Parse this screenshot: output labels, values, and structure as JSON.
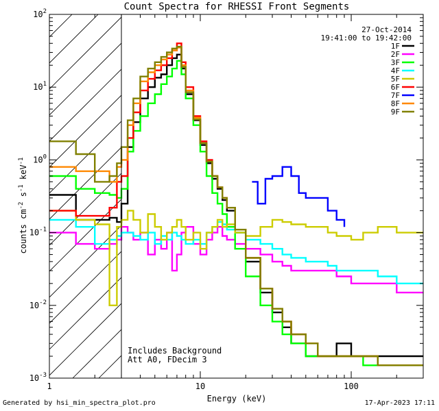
{
  "chart_data": {
    "type": "line",
    "title": "Count Spectra for RHESSI Front Segments",
    "xlabel": "Energy (keV)",
    "ylabel": "counts cm^-2 s^-1 keV^-1",
    "xscale": "log",
    "yscale": "log",
    "xlim": [
      1,
      300
    ],
    "ylim": [
      0.001,
      100
    ],
    "x_tick_labels": [
      "1",
      "10",
      "100"
    ],
    "y_tick_labels": [
      {
        "base": "10",
        "exp": "-3"
      },
      {
        "base": "10",
        "exp": "-2"
      },
      {
        "base": "10",
        "exp": "-1"
      },
      {
        "base": "10",
        "exp": "0"
      },
      {
        "base": "10",
        "exp": "1"
      },
      {
        "base": "10",
        "exp": "2"
      }
    ],
    "date": "27-Oct-2014",
    "time_range": "19:41:00 to 19:42:00",
    "annotations": [
      "Includes Background",
      "Att A0, FDecim 3"
    ],
    "shaded_region_keV": [
      1,
      3
    ],
    "series": [
      {
        "name": "1F",
        "color": "#000000",
        "x": [
          1.0,
          1.5,
          2.0,
          2.5,
          2.8,
          3.0,
          3.3,
          3.6,
          4.0,
          4.5,
          5.0,
          5.5,
          6.0,
          6.5,
          7.0,
          7.5,
          8.0,
          9.0,
          10.0,
          11.0,
          12.0,
          13.0,
          14.0,
          15.0,
          17.0,
          20.0,
          25.0,
          30.0,
          35.0,
          40.0,
          50.0,
          60.0,
          70.0,
          80.0,
          100.0,
          120.0,
          150.0,
          200.0,
          300.0
        ],
        "values": [
          0.33,
          0.15,
          0.15,
          0.16,
          0.14,
          0.25,
          1.5,
          3.3,
          7.0,
          10.0,
          13.5,
          15.0,
          20.0,
          25.0,
          28.0,
          18.0,
          8.0,
          3.5,
          1.6,
          0.9,
          0.55,
          0.4,
          0.28,
          0.2,
          0.1,
          0.04,
          0.015,
          0.008,
          0.005,
          0.003,
          0.002,
          0.002,
          0.002,
          0.003,
          0.002,
          0.002,
          0.002,
          0.002,
          0.002
        ]
      },
      {
        "name": "2F",
        "color": "#ff00ff",
        "x": [
          1.0,
          1.5,
          2.0,
          2.5,
          2.8,
          3.0,
          3.3,
          3.6,
          4.0,
          4.5,
          5.0,
          5.5,
          6.0,
          6.5,
          7.0,
          7.5,
          8.0,
          9.0,
          10.0,
          11.0,
          12.0,
          13.0,
          14.0,
          15.0,
          17.0,
          20.0,
          25.0,
          30.0,
          35.0,
          40.0,
          50.0,
          60.0,
          70.0,
          80.0,
          100.0,
          120.0,
          150.0,
          200.0,
          300.0
        ],
        "values": [
          0.1,
          0.07,
          0.06,
          0.07,
          0.08,
          0.12,
          0.1,
          0.08,
          0.1,
          0.05,
          0.08,
          0.06,
          0.1,
          0.03,
          0.05,
          0.1,
          0.12,
          0.07,
          0.05,
          0.08,
          0.1,
          0.12,
          0.09,
          0.08,
          0.07,
          0.06,
          0.05,
          0.04,
          0.035,
          0.03,
          0.03,
          0.03,
          0.03,
          0.025,
          0.02,
          0.02,
          0.02,
          0.015,
          0.015
        ]
      },
      {
        "name": "3F",
        "color": "#00ff00",
        "x": [
          1.0,
          1.5,
          2.0,
          2.5,
          2.8,
          3.0,
          3.3,
          3.6,
          4.0,
          4.5,
          5.0,
          5.5,
          6.0,
          6.5,
          7.0,
          7.5,
          8.0,
          9.0,
          10.0,
          11.0,
          12.0,
          13.0,
          14.0,
          15.0,
          17.0,
          20.0,
          25.0,
          30.0,
          35.0,
          40.0,
          50.0,
          60.0,
          70.0,
          80.0,
          100.0,
          120.0,
          150.0,
          200.0,
          300.0
        ],
        "values": [
          0.6,
          0.4,
          0.35,
          0.33,
          0.3,
          0.4,
          1.3,
          2.5,
          4.0,
          6.0,
          8.0,
          11.0,
          14.0,
          18.0,
          23.0,
          15.0,
          7.0,
          3.0,
          1.3,
          0.6,
          0.35,
          0.25,
          0.18,
          0.12,
          0.06,
          0.025,
          0.01,
          0.006,
          0.004,
          0.003,
          0.002,
          0.002,
          0.002,
          0.002,
          0.002,
          0.0015,
          0.0015,
          0.0015,
          0.0015
        ]
      },
      {
        "name": "4F",
        "color": "#00ffff",
        "x": [
          1.0,
          1.5,
          2.0,
          2.5,
          2.8,
          3.0,
          3.3,
          3.6,
          4.0,
          4.5,
          5.0,
          5.5,
          6.0,
          6.5,
          7.0,
          7.5,
          8.0,
          9.0,
          10.0,
          11.0,
          12.0,
          13.0,
          14.0,
          15.0,
          17.0,
          20.0,
          25.0,
          30.0,
          35.0,
          40.0,
          50.0,
          60.0,
          70.0,
          80.0,
          100.0,
          120.0,
          150.0,
          200.0,
          300.0
        ],
        "values": [
          0.15,
          0.12,
          0.07,
          0.08,
          0.09,
          0.1,
          0.1,
          0.09,
          0.08,
          0.1,
          0.07,
          0.09,
          0.08,
          0.1,
          0.09,
          0.08,
          0.07,
          0.08,
          0.07,
          0.1,
          0.12,
          0.14,
          0.13,
          0.11,
          0.1,
          0.08,
          0.07,
          0.06,
          0.05,
          0.045,
          0.04,
          0.04,
          0.035,
          0.03,
          0.03,
          0.03,
          0.025,
          0.02,
          0.02
        ]
      },
      {
        "name": "5F",
        "color": "#cccc00",
        "x": [
          1.0,
          1.5,
          2.0,
          2.5,
          2.8,
          3.0,
          3.3,
          3.6,
          4.0,
          4.5,
          5.0,
          5.5,
          6.0,
          6.5,
          7.0,
          7.5,
          8.0,
          9.0,
          10.0,
          11.0,
          12.0,
          13.0,
          14.0,
          15.0,
          17.0,
          20.0,
          25.0,
          30.0,
          35.0,
          40.0,
          50.0,
          60.0,
          70.0,
          80.0,
          100.0,
          120.0,
          150.0,
          200.0,
          300.0
        ],
        "values": [
          0.2,
          0.15,
          0.13,
          0.01,
          0.12,
          0.15,
          0.2,
          0.15,
          0.1,
          0.18,
          0.12,
          0.08,
          0.1,
          0.12,
          0.15,
          0.12,
          0.08,
          0.1,
          0.06,
          0.1,
          0.12,
          0.15,
          0.12,
          0.13,
          0.1,
          0.09,
          0.12,
          0.15,
          0.14,
          0.13,
          0.12,
          0.12,
          0.1,
          0.09,
          0.08,
          0.1,
          0.12,
          0.1,
          0.1
        ]
      },
      {
        "name": "6F",
        "color": "#ff0000",
        "x": [
          1.0,
          1.5,
          2.0,
          2.5,
          2.8,
          3.0,
          3.3,
          3.6,
          4.0,
          4.5,
          5.0,
          5.5,
          6.0,
          6.5,
          7.0,
          7.5,
          8.0,
          9.0,
          10.0,
          11.0,
          12.0,
          13.0,
          14.0,
          15.0,
          17.0,
          20.0,
          25.0,
          30.0,
          35.0,
          40.0,
          50.0,
          60.0,
          70.0,
          80.0,
          100.0,
          120.0,
          150.0,
          200.0,
          300.0
        ],
        "values": [
          0.2,
          0.17,
          0.17,
          0.22,
          0.5,
          0.6,
          2.0,
          4.5,
          9.0,
          13.0,
          17.0,
          20.0,
          25.0,
          32.0,
          40.0,
          22.0,
          10.0,
          4.0,
          1.8,
          1.0,
          0.6,
          0.42,
          0.3,
          0.22,
          0.11,
          0.045,
          0.017,
          0.009,
          0.006,
          0.004,
          0.003,
          0.002,
          0.002,
          0.002,
          0.002,
          0.002,
          0.0015,
          0.0015,
          0.0015
        ]
      },
      {
        "name": "7F",
        "color": "#0000ff",
        "x": [
          22.0,
          24.0,
          27.0,
          30.0,
          35.0,
          40.0,
          45.0,
          50.0,
          55.0,
          60.0,
          70.0,
          80.0,
          90.0
        ],
        "values": [
          0.5,
          0.25,
          0.55,
          0.6,
          0.8,
          0.6,
          0.35,
          0.3,
          0.3,
          0.3,
          0.2,
          0.15,
          0.12
        ]
      },
      {
        "name": "8F",
        "color": "#ff8800",
        "x": [
          1.0,
          1.5,
          2.0,
          2.5,
          2.8,
          3.0,
          3.3,
          3.6,
          4.0,
          4.5,
          5.0,
          5.5,
          6.0,
          6.5,
          7.0,
          7.5,
          8.0,
          9.0,
          10.0,
          11.0,
          12.0,
          13.0,
          14.0,
          15.0,
          17.0,
          20.0,
          25.0,
          30.0,
          35.0,
          40.0,
          50.0,
          60.0,
          70.0,
          80.0,
          100.0,
          120.0,
          150.0,
          200.0,
          300.0
        ],
        "values": [
          0.8,
          0.7,
          0.7,
          0.5,
          0.8,
          1.0,
          3.0,
          6.0,
          12.0,
          16.0,
          20.0,
          24.0,
          28.0,
          32.0,
          35.0,
          20.0,
          9.0,
          3.8,
          1.7,
          0.95,
          0.6,
          0.42,
          0.3,
          0.22,
          0.11,
          0.045,
          0.017,
          0.009,
          0.006,
          0.004,
          0.003,
          0.002,
          0.002,
          0.002,
          0.002,
          0.002,
          0.0015,
          0.0015,
          0.0015
        ]
      },
      {
        "name": "9F",
        "color": "#808000",
        "x": [
          1.0,
          1.5,
          2.0,
          2.5,
          2.8,
          3.0,
          3.3,
          3.6,
          4.0,
          4.5,
          5.0,
          5.5,
          6.0,
          6.5,
          7.0,
          7.5,
          8.0,
          9.0,
          10.0,
          11.0,
          12.0,
          13.0,
          14.0,
          15.0,
          17.0,
          20.0,
          25.0,
          30.0,
          35.0,
          40.0,
          50.0,
          60.0,
          70.0,
          80.0,
          100.0,
          120.0,
          150.0,
          200.0,
          300.0
        ],
        "values": [
          1.8,
          1.2,
          0.5,
          0.6,
          0.9,
          1.5,
          3.5,
          7.0,
          14.0,
          18.0,
          22.0,
          26.0,
          30.0,
          34.0,
          36.0,
          19.0,
          8.5,
          3.6,
          1.7,
          0.95,
          0.6,
          0.42,
          0.3,
          0.22,
          0.11,
          0.045,
          0.017,
          0.009,
          0.006,
          0.004,
          0.003,
          0.002,
          0.002,
          0.002,
          0.002,
          0.002,
          0.0015,
          0.0015,
          0.0015
        ]
      }
    ]
  },
  "footer": {
    "generated_by": "Generated by hsi_min_spectra_plot.pro",
    "timestamp": "17-Apr-2023 17:11"
  }
}
